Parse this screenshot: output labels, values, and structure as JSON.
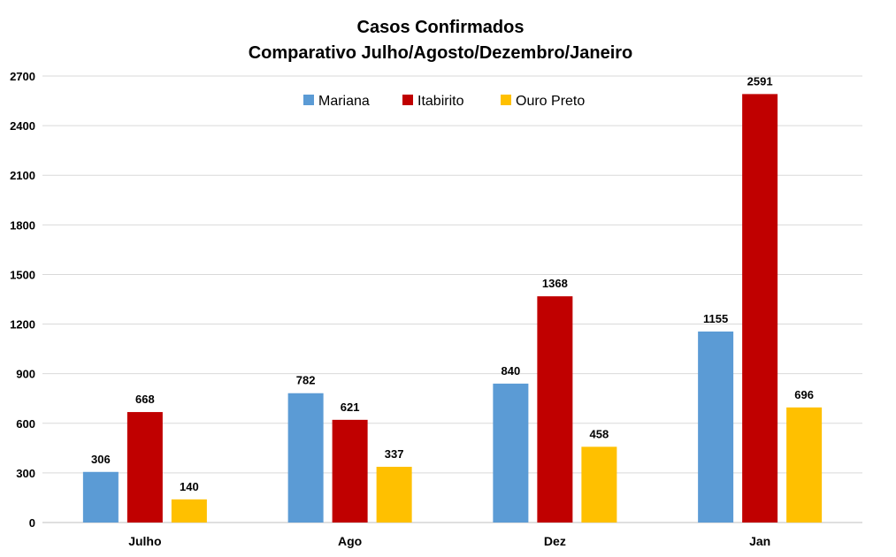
{
  "chart_data": {
    "type": "bar",
    "title": [
      "Casos Confirmados",
      "Comparativo Julho/Agosto/Dezembro/Janeiro"
    ],
    "xlabel": "",
    "ylabel": "",
    "categories": [
      "Julho",
      "Ago",
      "Dez",
      "Jan"
    ],
    "series": [
      {
        "name": "Mariana",
        "color": "#5b9bd5",
        "values": [
          306,
          782,
          840,
          1155
        ]
      },
      {
        "name": "Itabirito",
        "color": "#c00000",
        "values": [
          668,
          621,
          1368,
          2591
        ]
      },
      {
        "name": "Ouro Preto",
        "color": "#ffc000",
        "values": [
          140,
          337,
          458,
          696
        ]
      }
    ],
    "ylim": [
      0,
      2700
    ],
    "yticks": [
      0,
      300,
      600,
      900,
      1200,
      1500,
      1800,
      2100,
      2400,
      2700
    ],
    "grid": true,
    "legend_position": "top-center",
    "data_labels": true
  }
}
